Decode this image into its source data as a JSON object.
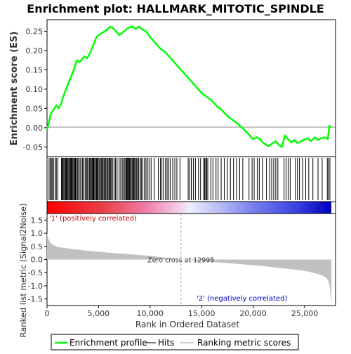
{
  "chart_data": {
    "type": "line",
    "title": "Enrichment plot: HALLMARK_MITOTIC_SPINDLE",
    "xlabel": "Rank in Ordered Dataset",
    "x_ticks": [
      "0",
      "5,000",
      "10,000",
      "15,000",
      "20,000",
      "25,000"
    ],
    "x_tick_values": [
      0,
      5000,
      10000,
      15000,
      20000,
      25000
    ],
    "xlim": [
      0,
      28000
    ],
    "n_genes": 27600,
    "es_panel": {
      "ylabel": "Enrichment score (ES)",
      "ylim": [
        -0.075,
        0.28
      ],
      "y_ticks": [
        "0.25",
        "0.20",
        "0.15",
        "0.10",
        "0.05",
        "0.00",
        "-0.05"
      ],
      "y_tick_values": [
        0.25,
        0.2,
        0.15,
        0.1,
        0.05,
        0.0,
        -0.05
      ],
      "series": [
        {
          "name": "Enrichment profile",
          "color": "#00ff00",
          "x": [
            0,
            150,
            350,
            600,
            900,
            1150,
            1400,
            1700,
            2000,
            2300,
            2600,
            2900,
            3100,
            3350,
            3600,
            3900,
            4200,
            4500,
            4800,
            5000,
            5300,
            5600,
            5900,
            6100,
            6400,
            6700,
            7000,
            7400,
            7700,
            8000,
            8300,
            8600,
            8900,
            9200,
            9600,
            10000,
            10500,
            11000,
            11500,
            12000,
            12500,
            13000,
            13500,
            14000,
            14500,
            15000,
            15500,
            16000,
            16500,
            17000,
            17500,
            18000,
            18500,
            19000,
            19500,
            20000,
            20300,
            20700,
            21000,
            21500,
            21800,
            22200,
            22500,
            22800,
            23100,
            23400,
            23700,
            24000,
            24300,
            24700,
            25000,
            25300,
            25600,
            26000,
            26300,
            26600,
            27000,
            27250,
            27400,
            27600
          ],
          "values": [
            -0.005,
            0.01,
            0.035,
            0.045,
            0.058,
            0.05,
            0.065,
            0.09,
            0.11,
            0.13,
            0.15,
            0.175,
            0.17,
            0.175,
            0.185,
            0.18,
            0.195,
            0.215,
            0.235,
            0.24,
            0.245,
            0.25,
            0.255,
            0.262,
            0.258,
            0.25,
            0.24,
            0.248,
            0.255,
            0.26,
            0.262,
            0.256,
            0.262,
            0.255,
            0.25,
            0.235,
            0.22,
            0.205,
            0.195,
            0.18,
            0.165,
            0.15,
            0.135,
            0.12,
            0.105,
            0.09,
            0.08,
            0.07,
            0.055,
            0.045,
            0.03,
            0.02,
            0.01,
            -0.002,
            -0.015,
            -0.03,
            -0.025,
            -0.03,
            -0.04,
            -0.048,
            -0.042,
            -0.035,
            -0.045,
            -0.05,
            -0.02,
            -0.03,
            -0.038,
            -0.032,
            -0.04,
            -0.035,
            -0.03,
            -0.028,
            -0.035,
            -0.025,
            -0.032,
            -0.027,
            -0.025,
            -0.03,
            0.005,
            0.0
          ]
        }
      ]
    },
    "hits_panel": {
      "legend_name": "Hits",
      "hit_ranks": [
        200,
        330,
        420,
        540,
        610,
        780,
        900,
        1050,
        1400,
        1480,
        1530,
        1620,
        1700,
        1800,
        1870,
        1950,
        2030,
        2120,
        2200,
        2290,
        2350,
        2430,
        2510,
        2600,
        2680,
        2760,
        2850,
        2950,
        3050,
        3200,
        3300,
        3450,
        3550,
        3700,
        3820,
        3900,
        4000,
        4130,
        4200,
        4300,
        4380,
        4460,
        4530,
        4620,
        4700,
        4800,
        4880,
        4950,
        5050,
        5150,
        5250,
        5330,
        5420,
        5520,
        5600,
        5700,
        5800,
        5900,
        6000,
        6080,
        6150,
        6230,
        6380,
        6520,
        6650,
        6800,
        7000,
        7150,
        7300,
        7420,
        7550,
        7650,
        7720,
        7780,
        7850,
        7920,
        7990,
        8050,
        8150,
        8250,
        8330,
        8420,
        8500,
        8600,
        8700,
        8800,
        8900,
        9050,
        9150,
        9300,
        9450,
        9600,
        9750,
        9900,
        10100,
        10400,
        10800,
        11000,
        11150,
        11300,
        11500,
        11650,
        11800,
        11950,
        12200,
        12400,
        12600,
        12900,
        13700,
        13850,
        14000,
        14200,
        14400,
        14700,
        14900,
        15200,
        15300,
        15400,
        15500,
        15600,
        15900,
        16100,
        16400,
        16600,
        16900,
        17200,
        17500,
        17800,
        18100,
        18400,
        18700,
        19000,
        19600,
        19900,
        20100,
        20400,
        20600,
        20900,
        21300,
        21600,
        21800,
        22000,
        22200,
        22400,
        23000,
        23200,
        23400,
        23600,
        24100,
        24300,
        24500,
        24800,
        25100,
        25400,
        25800,
        26300,
        26700,
        27200,
        27300,
        27450
      ]
    },
    "metric_panel": {
      "ylabel": "Ranked list metric (Signal2Noise)",
      "ylim": [
        -1.75,
        1.75
      ],
      "y_ticks": [
        "1.5",
        "1.0",
        "0.5",
        "0.0",
        "-0.5",
        "-1.0",
        "-1.5"
      ],
      "y_tick_values": [
        1.5,
        1.0,
        0.5,
        0.0,
        -0.5,
        -1.0,
        -1.5
      ],
      "legend_name": "Ranking metric scores",
      "zero_cross_rank": 12995,
      "profile_x": [
        0,
        100,
        300,
        600,
        1000,
        2000,
        4000,
        6000,
        8000,
        10000,
        12995,
        15000,
        18000,
        21000,
        23000,
        24500,
        25500,
        26300,
        26800,
        27100,
        27300,
        27450,
        27600
      ],
      "profile_y": [
        1.02,
        0.8,
        0.65,
        0.56,
        0.48,
        0.42,
        0.33,
        0.26,
        0.2,
        0.14,
        0.0,
        -0.06,
        -0.15,
        -0.25,
        -0.34,
        -0.4,
        -0.47,
        -0.55,
        -0.62,
        -0.7,
        -0.8,
        -1.05,
        -1.65
      ]
    },
    "annotations": {
      "zero_cross": "Zero cross at 12995",
      "positive": "'1' (positively correlated)",
      "negative": "'2' (negatively correlated)"
    },
    "legend": [
      "Enrichment profile",
      "Hits",
      "Ranking metric scores"
    ],
    "colors": {
      "es_line": "#00ff00",
      "hits": "#000000",
      "metric_fill": "#c0c0c0",
      "positive_text": "#cc0000",
      "negative_text": "#0000cc",
      "zero_line": "#999999"
    }
  }
}
